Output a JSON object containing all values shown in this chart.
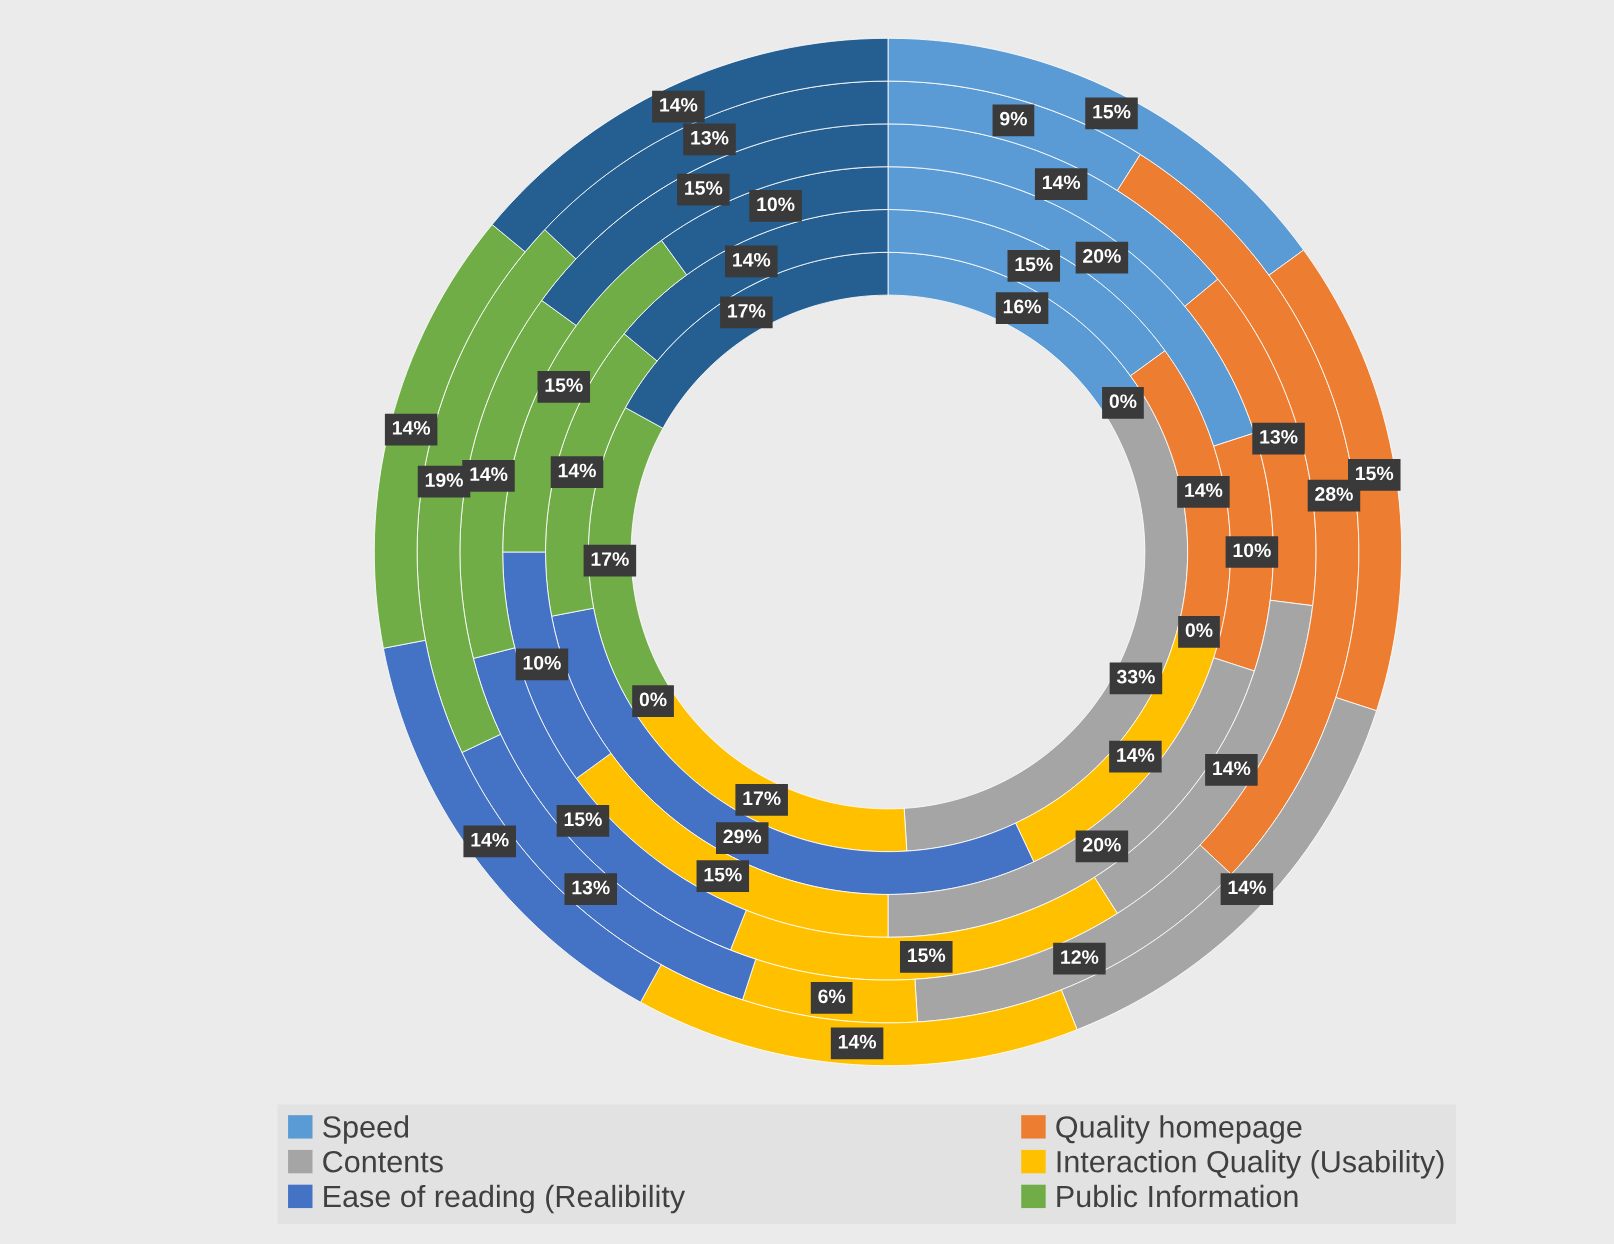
{
  "chart_data": {
    "type": "donut",
    "categories": [
      "Speed",
      "Quality homepage",
      "Contents",
      "Interaction Quality (Usability)",
      "Ease of reading (Realibility",
      "Public Information",
      null
    ],
    "colors": [
      "#5b9bd5",
      "#ed7d31",
      "#a5a5a5",
      "#ffc000",
      "#4472c4",
      "#70ad47",
      "#255e91"
    ],
    "series": [
      {
        "values": [
          16,
          0,
          33,
          17,
          0,
          17,
          17
        ],
        "value_labels": [
          "16%",
          "0%",
          "33%",
          "17%",
          "0%",
          "17%",
          "17%"
        ]
      },
      {
        "values": [
          15,
          14,
          0,
          14,
          29,
          14,
          14
        ],
        "value_labels": [
          "15%",
          "14%",
          "0%",
          "14%",
          "29%",
          "14%",
          "14%"
        ]
      },
      {
        "values": [
          20,
          10,
          20,
          15,
          10,
          15,
          10
        ],
        "value_labels": [
          "20%",
          "10%",
          "20%",
          "15%",
          "10%",
          "15%",
          "10%"
        ]
      },
      {
        "values": [
          14,
          13,
          14,
          15,
          15,
          14,
          15
        ],
        "value_labels": [
          "14%",
          "13%",
          "14%",
          "15%",
          "15%",
          "14%",
          "15%"
        ]
      },
      {
        "values": [
          9,
          28,
          12,
          6,
          13,
          19,
          13
        ],
        "value_labels": [
          "9%",
          "28%",
          "12%",
          "6%",
          "13%",
          "19%",
          "13%"
        ]
      },
      {
        "values": [
          15,
          15,
          14,
          14,
          14,
          14,
          14
        ],
        "value_labels": [
          "15%",
          "15%",
          "14%",
          "14%",
          "14%",
          "14%",
          "14%"
        ]
      }
    ],
    "legend": "bottom"
  }
}
